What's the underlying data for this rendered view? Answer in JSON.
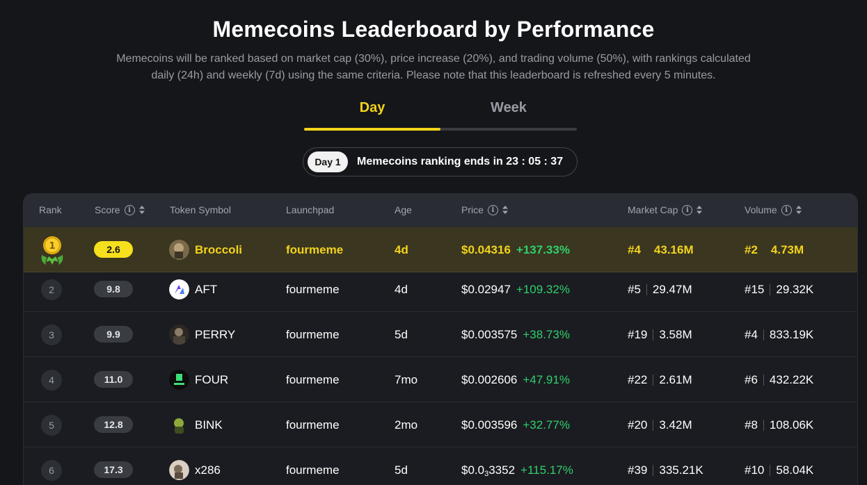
{
  "header": {
    "title": "Memecoins Leaderboard by Performance",
    "subtitle": "Memecoins will be ranked based on market cap (30%), price increase (20%), and trading volume (50%), with rankings calculated daily (24h) and weekly (7d) using the same criteria. Please note that this leaderboard is refreshed every 5 minutes."
  },
  "tabs": [
    {
      "label": "Day",
      "active": true
    },
    {
      "label": "Week",
      "active": false
    }
  ],
  "countdown": {
    "pill": "Day 1",
    "text": "Memecoins ranking ends in 23 : 05 : 37"
  },
  "table": {
    "columns": {
      "rank": "Rank",
      "score": "Score",
      "token": "Token Symbol",
      "launchpad": "Launchpad",
      "age": "Age",
      "price": "Price",
      "market_cap": "Market Cap",
      "volume": "Volume"
    },
    "rows": [
      {
        "rank": "1",
        "score": "2.6",
        "symbol": "Broccoli",
        "launchpad": "fourmeme",
        "age": "4d",
        "price": "$0.04316",
        "price_sub": "",
        "price_rest": "",
        "change": "+137.33%",
        "mc_rank": "#4",
        "mc": "43.16M",
        "vol_rank": "#2",
        "vol": "4.73M",
        "avatar": "broccoli-avatar"
      },
      {
        "rank": "2",
        "score": "9.8",
        "symbol": "AFT",
        "launchpad": "fourmeme",
        "age": "4d",
        "price": "$0.02947",
        "price_sub": "",
        "price_rest": "",
        "change": "+109.32%",
        "mc_rank": "#5",
        "mc": "29.47M",
        "vol_rank": "#15",
        "vol": "29.32K",
        "avatar": "aft-avatar"
      },
      {
        "rank": "3",
        "score": "9.9",
        "symbol": "PERRY",
        "launchpad": "fourmeme",
        "age": "5d",
        "price": "$0.003575",
        "price_sub": "",
        "price_rest": "",
        "change": "+38.73%",
        "mc_rank": "#19",
        "mc": "3.58M",
        "vol_rank": "#4",
        "vol": "833.19K",
        "avatar": "perry-avatar"
      },
      {
        "rank": "4",
        "score": "11.0",
        "symbol": "FOUR",
        "launchpad": "fourmeme",
        "age": "7mo",
        "price": "$0.002606",
        "price_sub": "",
        "price_rest": "",
        "change": "+47.91%",
        "mc_rank": "#22",
        "mc": "2.61M",
        "vol_rank": "#6",
        "vol": "432.22K",
        "avatar": "four-avatar"
      },
      {
        "rank": "5",
        "score": "12.8",
        "symbol": "BINK",
        "launchpad": "fourmeme",
        "age": "2mo",
        "price": "$0.003596",
        "price_sub": "",
        "price_rest": "",
        "change": "+32.77%",
        "mc_rank": "#20",
        "mc": "3.42M",
        "vol_rank": "#8",
        "vol": "108.06K",
        "avatar": "bink-avatar"
      },
      {
        "rank": "6",
        "score": "17.3",
        "symbol": "x286",
        "launchpad": "fourmeme",
        "age": "5d",
        "price": "$0.0",
        "price_sub": "3",
        "price_rest": "3352",
        "change": "+115.17%",
        "mc_rank": "#39",
        "mc": "335.21K",
        "vol_rank": "#10",
        "vol": "58.04K",
        "avatar": "x286-avatar"
      }
    ]
  },
  "colors": {
    "accent": "#f3d31a",
    "positive": "#2fd06c",
    "background": "#15161a"
  }
}
